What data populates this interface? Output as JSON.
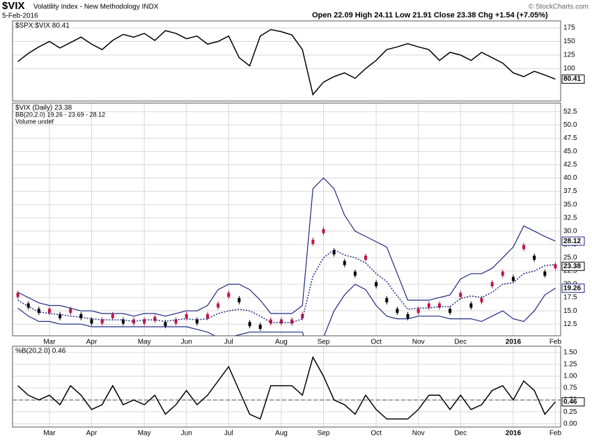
{
  "header": {
    "symbol": "$VIX",
    "name": "Volatility Index - New Methodology INDX",
    "date": "5-Feb-2016",
    "quote": "Open 22.09  High 24.11  Low 21.91  Close 23.38  Chg +1.54 (+7.05%)",
    "credit": "© StockCharts.com"
  },
  "chart_data": [
    {
      "type": "line",
      "legend": [
        "$SPX:$VIX 80.41"
      ],
      "ylim": [
        40,
        188
      ],
      "yticks": [
        100,
        125,
        150,
        175
      ],
      "grid": true,
      "series": [
        {
          "name": "$SPX:$VIX",
          "color": "#000000",
          "show_last": true,
          "values": [
            113,
            128,
            140,
            150,
            138,
            148,
            158,
            145,
            135,
            152,
            163,
            158,
            165,
            152,
            170,
            165,
            155,
            160,
            145,
            150,
            160,
            120,
            105,
            160,
            172,
            168,
            162,
            135,
            52,
            75,
            85,
            92,
            82,
            100,
            115,
            135,
            140,
            146,
            140,
            135,
            115,
            130,
            125,
            115,
            130,
            120,
            110,
            92,
            85,
            95,
            88,
            80.41
          ]
        }
      ]
    },
    {
      "type": "bollinger",
      "legend": [
        "$VIX (Daily) 23.38",
        "BB(20,2.0) 19.26 - 23.69 - 28.12",
        "Volume undef"
      ],
      "categories": [
        null,
        null,
        null,
        "Mar",
        null,
        null,
        null,
        "Apr",
        null,
        null,
        null,
        null,
        "May",
        null,
        null,
        null,
        "Jun",
        null,
        null,
        null,
        "Jul",
        null,
        null,
        null,
        null,
        "Aug",
        null,
        null,
        null,
        "Sep",
        null,
        null,
        null,
        null,
        "Oct",
        null,
        null,
        null,
        "Nov",
        null,
        null,
        null,
        "Dec",
        null,
        null,
        null,
        null,
        "2016",
        null,
        null,
        null,
        "Feb"
      ],
      "ylim": [
        10.3,
        54.1
      ],
      "yticks": [
        {
          "value": 12.5,
          "label": "12.5"
        },
        {
          "value": 15,
          "label": "15.0"
        },
        {
          "value": 17.5,
          "label": "17.5"
        },
        {
          "value": 20,
          "label": "20.0"
        },
        {
          "value": 22.5,
          "label": "22.5"
        },
        {
          "value": 25,
          "label": "25.0"
        },
        {
          "value": 27.5,
          "label": "27.5"
        },
        {
          "value": 30,
          "label": "30.0"
        },
        {
          "value": 32.5,
          "label": "32.5"
        },
        {
          "value": 35,
          "label": "35.0"
        },
        {
          "value": 37.5,
          "label": "37.5"
        },
        {
          "value": 40,
          "label": "40.0"
        },
        {
          "value": 42.5,
          "label": "42.5"
        },
        {
          "value": 45,
          "label": "45.0"
        },
        {
          "value": 47.5,
          "label": "47.5"
        },
        {
          "value": 50,
          "label": "50.0"
        },
        {
          "value": 52.5,
          "label": "52.5"
        }
      ],
      "grid": true,
      "series": [
        {
          "name": "$VIX",
          "color": "#000000",
          "down_color": "#c0144a",
          "style": "candles",
          "show_last": true,
          "values": [
            18,
            16,
            15,
            15,
            14,
            15,
            14,
            13,
            13,
            14,
            13,
            13,
            13,
            13.5,
            12.5,
            13,
            14,
            13,
            14,
            16,
            18,
            17,
            12.5,
            12,
            13,
            13,
            13,
            14,
            28,
            30,
            26,
            24,
            22,
            25,
            20,
            17,
            15,
            14,
            15,
            16,
            16,
            15,
            18,
            16,
            17,
            20,
            22,
            21,
            27,
            25,
            22,
            23.38
          ]
        },
        {
          "name": "BB upper",
          "color": "#1f2a80",
          "style": "solid",
          "show_last": true,
          "values": [
            18.5,
            17.5,
            16.5,
            16,
            16,
            15.5,
            15,
            15,
            14.5,
            14.5,
            14.5,
            14,
            14.5,
            14.5,
            14,
            14.5,
            15,
            15,
            16,
            19,
            20,
            20,
            19,
            17,
            14.5,
            14.5,
            14.5,
            16,
            38,
            40,
            38,
            33,
            30,
            29,
            28,
            27,
            22,
            17,
            17,
            17,
            17.5,
            18,
            21,
            22,
            22,
            23,
            25,
            27,
            31,
            30,
            29,
            28.12
          ]
        },
        {
          "name": "BB middle",
          "color": "#1f2a80",
          "style": "dotted",
          "values": [
            17,
            15.8,
            14.8,
            14.5,
            14.3,
            14,
            13.8,
            13.5,
            13.3,
            13.3,
            13.3,
            13,
            13.3,
            13.3,
            13,
            13.3,
            13.5,
            13.3,
            13.5,
            14.5,
            15,
            15.3,
            15,
            14,
            12.8,
            12.8,
            12.8,
            13.5,
            21.5,
            25,
            26.5,
            25.5,
            25,
            24,
            22,
            20.5,
            17.8,
            15.3,
            15.5,
            15.5,
            15.8,
            15.8,
            17.3,
            17.8,
            17.5,
            18.5,
            20,
            20.3,
            22,
            22.5,
            23.5,
            23.69
          ]
        },
        {
          "name": "BB lower",
          "color": "#1f2a80",
          "style": "solid",
          "show_last": true,
          "values": [
            15.5,
            14,
            13,
            13,
            12.5,
            12.5,
            12.5,
            12,
            12,
            12,
            12,
            12,
            12,
            12,
            12,
            12,
            12,
            11.5,
            11,
            10,
            10,
            10.5,
            11,
            11,
            11,
            11,
            11,
            11,
            5,
            10,
            15,
            18,
            20,
            19,
            16,
            14,
            13.5,
            13.5,
            14,
            14,
            14,
            13.5,
            13.5,
            13.5,
            13,
            14,
            15,
            13.5,
            13,
            15,
            18,
            19.26
          ]
        }
      ]
    },
    {
      "type": "line",
      "legend": [
        "%B(20,2.0) 0.46"
      ],
      "categories": [
        null,
        null,
        null,
        "Mar",
        null,
        null,
        null,
        "Apr",
        null,
        null,
        null,
        null,
        "May",
        null,
        null,
        null,
        "Jun",
        null,
        null,
        null,
        "Jul",
        null,
        null,
        null,
        null,
        "Aug",
        null,
        null,
        null,
        "Sep",
        null,
        null,
        null,
        null,
        "Oct",
        null,
        null,
        null,
        "Nov",
        null,
        null,
        null,
        "Dec",
        null,
        null,
        null,
        null,
        "2016",
        null,
        null,
        null,
        "Feb"
      ],
      "ylim": [
        -0.07,
        1.63
      ],
      "yticks": [
        {
          "value": 0,
          "label": "0.00"
        },
        {
          "value": 0.25,
          "label": "0.25"
        },
        {
          "value": 0.5,
          "label": "0.50"
        },
        {
          "value": 0.75,
          "label": "0.75"
        },
        {
          "value": 1,
          "label": "1.00"
        },
        {
          "value": 1.25,
          "label": "1.25"
        },
        {
          "value": 1.5,
          "label": "1.50"
        }
      ],
      "grid": true,
      "reference_line": 0.5,
      "series": [
        {
          "name": "%B",
          "color": "#000000",
          "show_last": true,
          "values": [
            0.8,
            0.6,
            0.5,
            0.6,
            0.4,
            0.8,
            0.6,
            0.3,
            0.4,
            0.8,
            0.4,
            0.5,
            0.4,
            0.6,
            0.2,
            0.4,
            0.7,
            0.4,
            0.6,
            0.9,
            1.2,
            0.7,
            0.2,
            0.1,
            0.8,
            0.8,
            0.8,
            0.6,
            1.4,
            1.0,
            0.5,
            0.4,
            0.2,
            0.6,
            0.3,
            0.1,
            0.1,
            0.1,
            0.3,
            0.6,
            0.6,
            0.3,
            0.6,
            0.3,
            0.4,
            0.7,
            0.8,
            0.5,
            0.9,
            0.7,
            0.2,
            0.46
          ]
        }
      ]
    }
  ]
}
